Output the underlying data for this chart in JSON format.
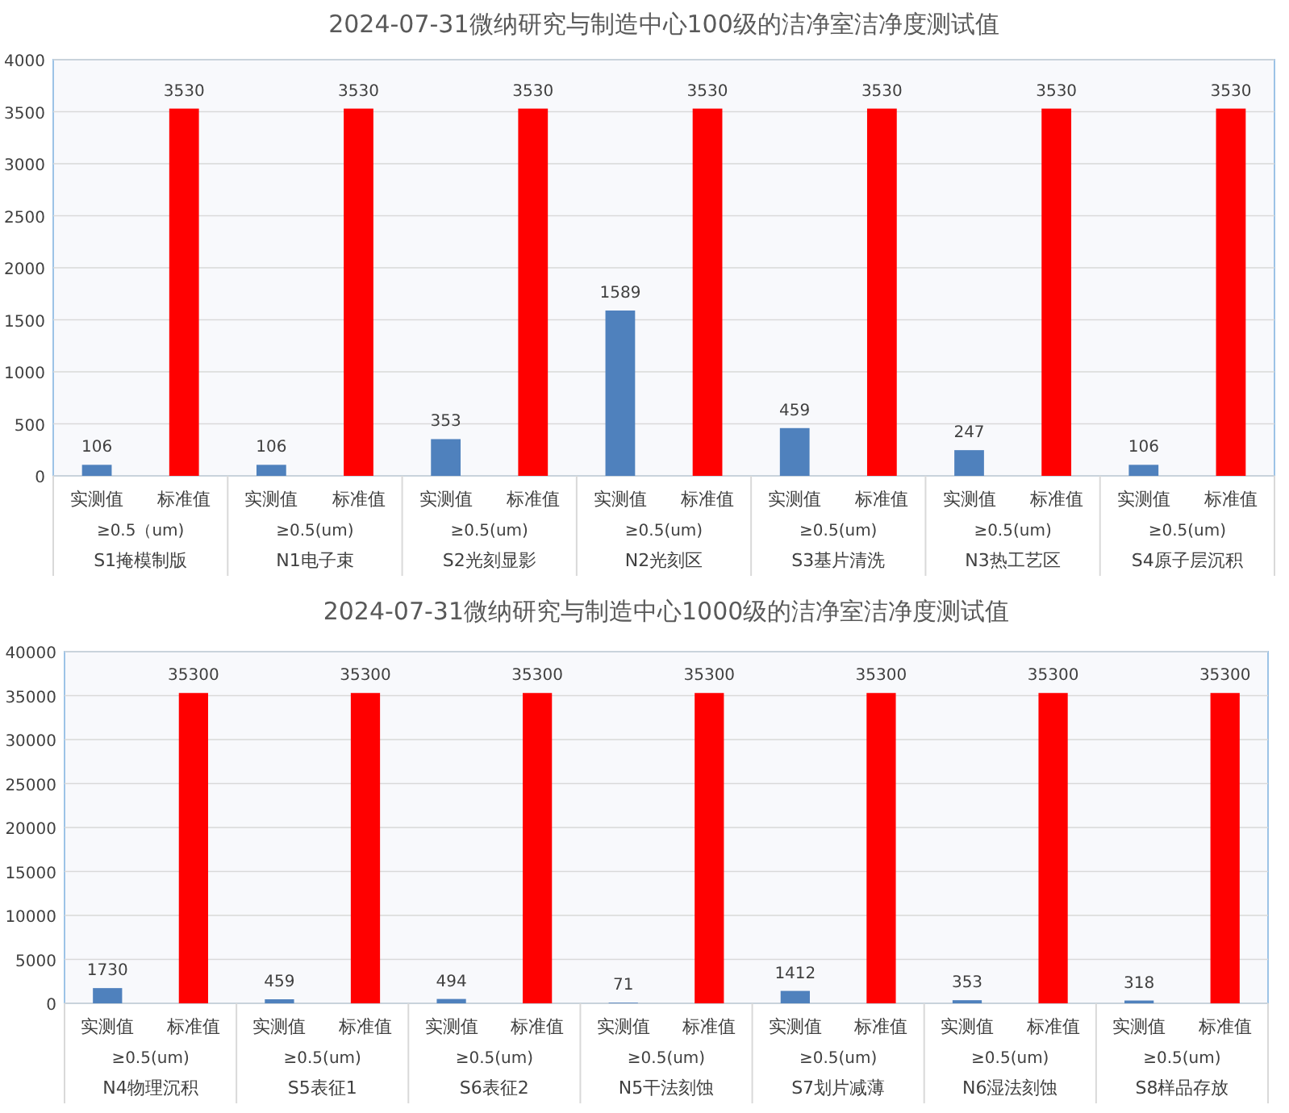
{
  "chart_data": [
    {
      "type": "bar",
      "title": "2024-07-31微纳研究与制造中心100级的洁净室洁净度测试值",
      "categories": [
        "实测值",
        "标准值",
        "实测值",
        "标准值",
        "实测值",
        "标准值",
        "实测值",
        "标准值",
        "实测值",
        "标准值",
        "实测值",
        "标准值",
        "实测值",
        "标准值"
      ],
      "values": [
        106,
        3530,
        106,
        3530,
        353,
        3530,
        1589,
        3530,
        459,
        3530,
        247,
        3530,
        106,
        3530
      ],
      "colors": [
        "#4f81bd",
        "#ff0000",
        "#4f81bd",
        "#ff0000",
        "#4f81bd",
        "#ff0000",
        "#4f81bd",
        "#ff0000",
        "#4f81bd",
        "#ff0000",
        "#4f81bd",
        "#ff0000",
        "#4f81bd",
        "#ff0000"
      ],
      "ylim": [
        0,
        4000
      ],
      "yticks": [
        0,
        500,
        1000,
        1500,
        2000,
        2500,
        3000,
        3500,
        4000
      ],
      "grid": "y",
      "data_labels": true,
      "annotations": [
        "≥0.5（um)",
        "S1掩模制版",
        "≥0.5(um)",
        "N1电子束",
        "≥0.5(um)",
        "S2光刻显影",
        "≥0.5(um)",
        "N2光刻区",
        "≥0.5(um)",
        "S3基片清洗",
        "≥0.5(um)",
        "N3热工艺区",
        "≥0.5(um)",
        "S4原子层沉积"
      ]
    },
    {
      "type": "bar",
      "title": "2024-07-31微纳研究与制造中心1000级的洁净室洁净度测试值",
      "categories": [
        "实测值",
        "标准值",
        "实测值",
        "标准值",
        "实测值",
        "标准值",
        "实测值",
        "标准值",
        "实测值",
        "标准值",
        "实测值",
        "标准值",
        "实测值",
        "标准值"
      ],
      "values": [
        1730,
        35300,
        459,
        35300,
        494,
        35300,
        71,
        35300,
        1412,
        35300,
        353,
        35300,
        318,
        35300
      ],
      "colors": [
        "#4f81bd",
        "#ff0000",
        "#4f81bd",
        "#ff0000",
        "#4f81bd",
        "#ff0000",
        "#4f81bd",
        "#ff0000",
        "#4f81bd",
        "#ff0000",
        "#4f81bd",
        "#ff0000",
        "#4f81bd",
        "#ff0000"
      ],
      "ylim": [
        0,
        40000
      ],
      "yticks": [
        0,
        5000,
        10000,
        15000,
        20000,
        25000,
        30000,
        35000,
        40000
      ],
      "grid": "y",
      "data_labels": true,
      "annotations": [
        "≥0.5(um)",
        "N4物理沉积",
        "≥0.5(um)",
        "S5表征1",
        "≥0.5(um)",
        "S6表征2",
        "≥0.5(um)",
        "N5干法刻蚀",
        "≥0.5(um)",
        "S7划片减薄",
        "≥0.5(um)",
        "N6湿法刻蚀",
        "≥0.5(um)",
        "S8样品存放"
      ]
    }
  ]
}
